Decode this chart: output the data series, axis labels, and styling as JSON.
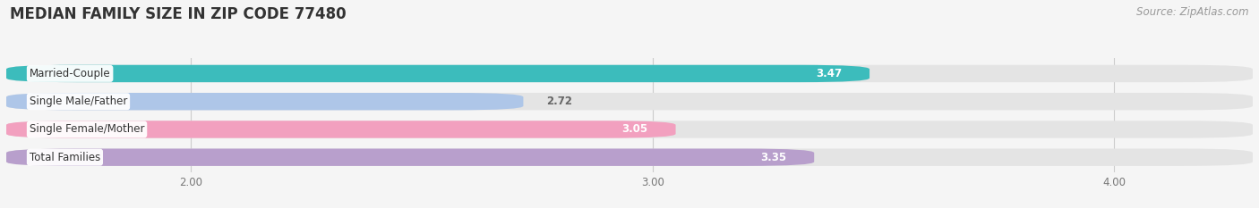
{
  "title": "MEDIAN FAMILY SIZE IN ZIP CODE 77480",
  "source": "Source: ZipAtlas.com",
  "categories": [
    "Married-Couple",
    "Single Male/Father",
    "Single Female/Mother",
    "Total Families"
  ],
  "values": [
    3.47,
    2.72,
    3.05,
    3.35
  ],
  "bar_colors": [
    "#3cbcbc",
    "#aec6e8",
    "#f2a0bf",
    "#b89fcc"
  ],
  "xlim": [
    1.6,
    4.3
  ],
  "xstart": 1.6,
  "xticks": [
    2.0,
    3.0,
    4.0
  ],
  "xtick_labels": [
    "2.00",
    "3.00",
    "4.00"
  ],
  "background_color": "#f5f5f5",
  "bar_bg_color": "#e4e4e4",
  "value_color_inside": "#ffffff",
  "value_color_outside": "#666666",
  "title_fontsize": 12,
  "label_fontsize": 8.5,
  "value_fontsize": 8.5,
  "tick_fontsize": 8.5,
  "source_fontsize": 8.5
}
